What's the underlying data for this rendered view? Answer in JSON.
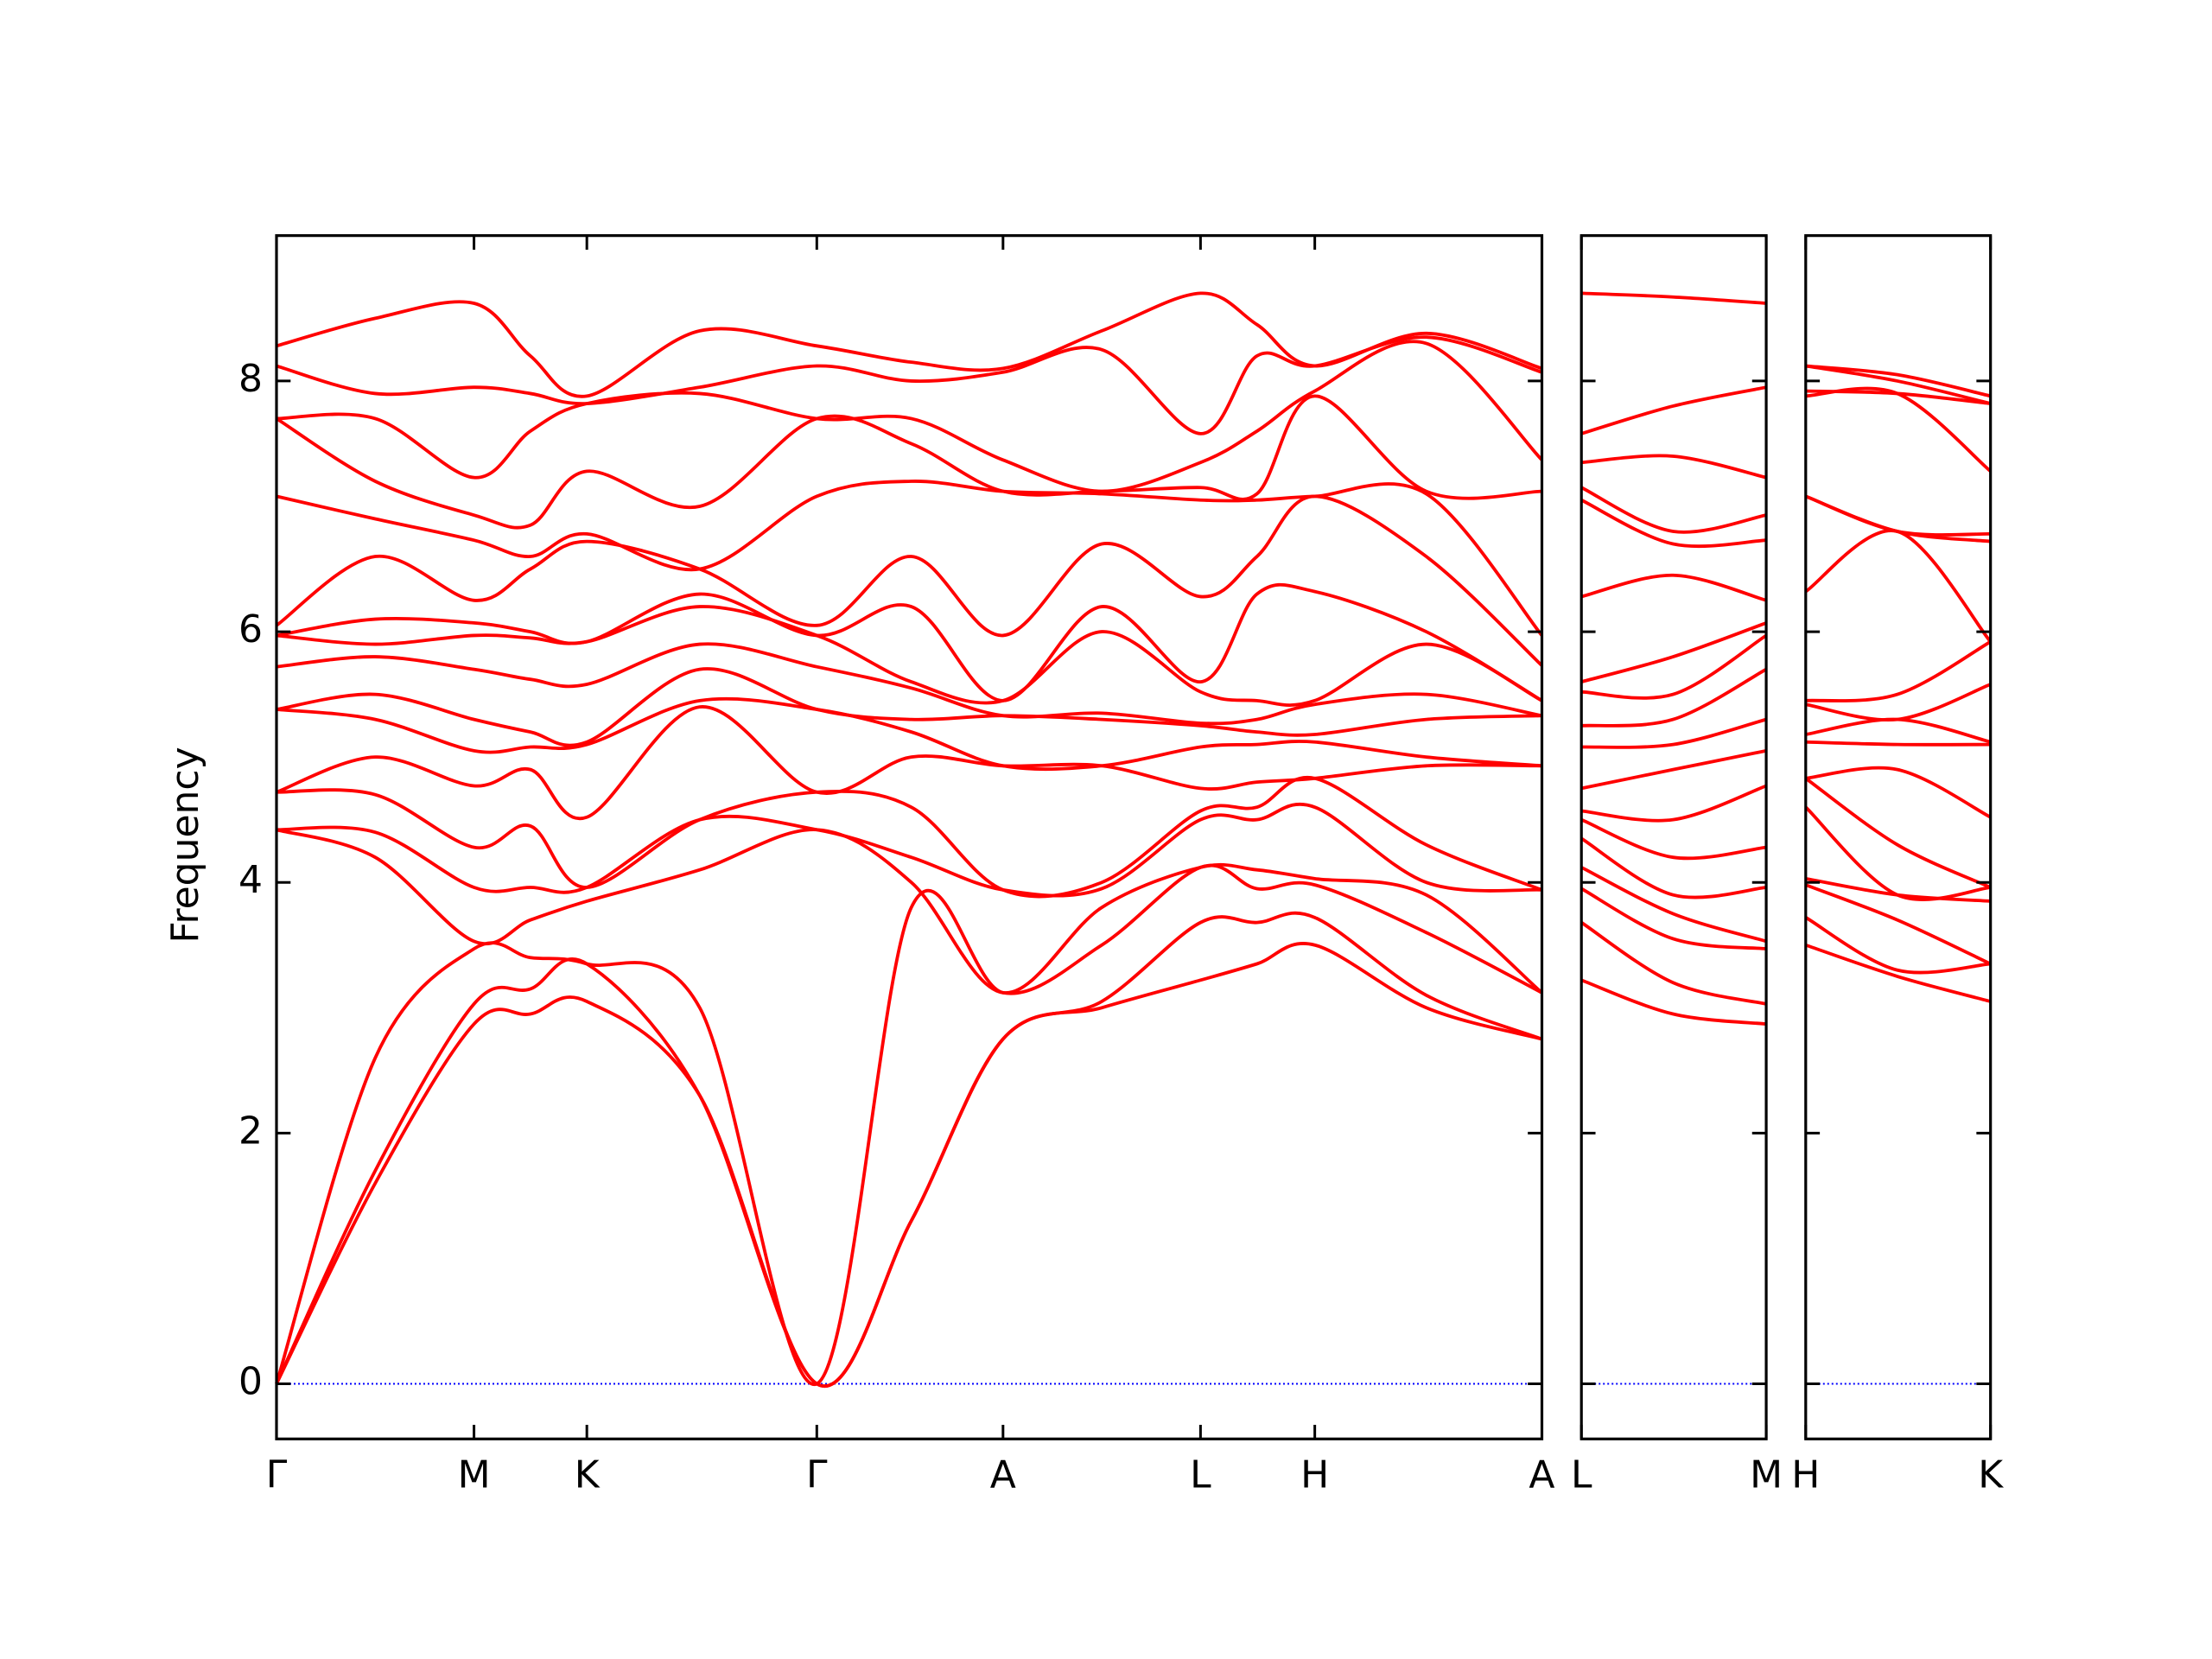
{
  "chart_data": [
    {
      "type": "line",
      "y_label": "Frequency",
      "line_color": "#ff0000",
      "zero_line": {
        "value": 0,
        "color": "#0000ff"
      },
      "xlim": [
        0,
        8.97
      ],
      "ylim": [
        -0.44,
        9.16
      ],
      "yticks": [
        0,
        2,
        4,
        6,
        8
      ],
      "ytick_labels": true,
      "xticks": [
        {
          "value": 0,
          "label": "Γ"
        },
        {
          "value": 1.4,
          "label": "M"
        },
        {
          "value": 2.2,
          "label": "K"
        },
        {
          "value": 3.83,
          "label": "Γ"
        },
        {
          "value": 5.15,
          "label": "A"
        },
        {
          "value": 6.55,
          "label": "L"
        },
        {
          "value": 7.36,
          "label": "H"
        },
        {
          "value": 8.97,
          "label": "A"
        }
      ],
      "x": [
        0,
        0.7,
        1.4,
        1.8,
        2.2,
        3.0,
        3.83,
        4.5,
        5.15,
        5.85,
        6.55,
        6.95,
        7.36,
        8.15,
        8.97
      ],
      "series": [
        {
          "values": [
            0,
            1.6,
            2.87,
            2.95,
            3.05,
            2.3,
            0,
            1.3,
            2.75,
            3.0,
            3.22,
            3.35,
            3.5,
            3.0,
            2.75
          ]
        },
        {
          "values": [
            0,
            1.7,
            3.03,
            3.15,
            3.35,
            2.3,
            0,
            1.3,
            2.75,
            3.05,
            3.68,
            3.68,
            3.72,
            3.1,
            2.75
          ]
        },
        {
          "values": [
            0,
            2.6,
            3.47,
            3.4,
            3.35,
            3.0,
            0,
            3.8,
            3.12,
            3.5,
            4.12,
            3.95,
            3.98,
            3.6,
            3.12
          ]
        },
        {
          "values": [
            4.42,
            4.2,
            3.53,
            3.7,
            3.85,
            4.1,
            4.42,
            4.0,
            3.12,
            3.8,
            4.12,
            4.1,
            4.03,
            3.9,
            3.12
          ]
        },
        {
          "values": [
            4.42,
            4.4,
            3.96,
            3.96,
            3.96,
            4.5,
            4.42,
            4.2,
            3.94,
            3.95,
            4.5,
            4.5,
            4.6,
            4.0,
            3.94
          ]
        },
        {
          "values": [
            4.72,
            4.7,
            4.28,
            4.45,
            3.96,
            4.5,
            4.72,
            4.6,
            3.94,
            4.0,
            4.57,
            4.6,
            4.83,
            4.3,
            3.94
          ]
        },
        {
          "values": [
            4.72,
            5.0,
            4.77,
            4.9,
            4.52,
            5.4,
            4.72,
            5.0,
            4.93,
            4.93,
            4.75,
            4.8,
            4.83,
            4.93,
            4.93
          ]
        },
        {
          "values": [
            5.38,
            5.3,
            5.05,
            5.08,
            5.1,
            5.45,
            5.38,
            5.2,
            4.93,
            4.93,
            5.08,
            5.1,
            5.12,
            5.0,
            4.93
          ]
        },
        {
          "values": [
            5.38,
            5.5,
            5.3,
            5.2,
            5.12,
            5.7,
            5.38,
            5.3,
            5.33,
            5.3,
            5.25,
            5.2,
            5.18,
            5.3,
            5.33
          ]
        },
        {
          "values": [
            5.72,
            5.8,
            5.7,
            5.62,
            5.58,
            5.9,
            5.72,
            5.55,
            5.33,
            5.35,
            5.27,
            5.3,
            5.42,
            5.5,
            5.33
          ]
        },
        {
          "values": [
            5.97,
            5.9,
            5.97,
            5.95,
            5.92,
            6.2,
            5.97,
            5.6,
            5.45,
            6.0,
            5.52,
            5.45,
            5.45,
            5.9,
            5.45
          ]
        },
        {
          "values": [
            5.97,
            6.1,
            6.07,
            6.0,
            5.92,
            6.3,
            5.97,
            6.2,
            5.45,
            6.2,
            5.6,
            6.3,
            6.32,
            6.0,
            5.45
          ]
        },
        {
          "values": [
            6.05,
            6.6,
            6.25,
            6.5,
            6.72,
            6.5,
            6.05,
            6.6,
            5.97,
            6.7,
            6.28,
            6.6,
            7.08,
            6.6,
            5.73
          ]
        },
        {
          "values": [
            7.08,
            6.9,
            6.73,
            6.6,
            6.78,
            6.5,
            7.08,
            7.2,
            7.12,
            7.1,
            7.05,
            7.05,
            7.08,
            7.1,
            5.97
          ]
        },
        {
          "values": [
            7.7,
            7.2,
            6.93,
            6.85,
            7.28,
            7.0,
            7.7,
            7.5,
            7.12,
            7.12,
            7.15,
            7.1,
            7.88,
            7.12,
            7.12
          ]
        },
        {
          "values": [
            7.7,
            7.7,
            7.23,
            7.6,
            7.82,
            7.9,
            7.7,
            7.7,
            7.37,
            7.12,
            7.35,
            7.6,
            7.92,
            8.3,
            7.37
          ]
        },
        {
          "values": [
            8.12,
            7.9,
            7.95,
            7.9,
            7.82,
            7.95,
            8.12,
            8.0,
            8.07,
            8.25,
            7.58,
            8.2,
            8.12,
            8.35,
            8.07
          ]
        },
        {
          "values": [
            8.28,
            8.5,
            8.62,
            8.2,
            7.88,
            8.4,
            8.28,
            8.15,
            8.1,
            8.4,
            8.7,
            8.45,
            8.12,
            8.38,
            8.1
          ]
        }
      ]
    },
    {
      "type": "line",
      "line_color": "#ff0000",
      "xlim": [
        8.97,
        10.28
      ],
      "ylim": [
        -0.44,
        9.16
      ],
      "yticks": [
        0,
        2,
        4,
        6,
        8
      ],
      "ytick_labels": false,
      "xticks": [
        {
          "value": 8.97,
          "label": "L"
        },
        {
          "value": 10.28,
          "label": "M"
        }
      ],
      "x": [
        8.97,
        9.62,
        10.28
      ],
      "series": [
        {
          "values": [
            3.22,
            2.95,
            2.87
          ]
        },
        {
          "values": [
            3.68,
            3.2,
            3.03
          ]
        },
        {
          "values": [
            3.95,
            3.55,
            3.47
          ]
        },
        {
          "values": [
            4.12,
            3.75,
            3.53
          ]
        },
        {
          "values": [
            4.35,
            3.9,
            3.96
          ]
        },
        {
          "values": [
            4.5,
            4.2,
            4.28
          ]
        },
        {
          "values": [
            4.57,
            4.5,
            4.77
          ]
        },
        {
          "values": [
            4.75,
            4.9,
            5.05
          ]
        },
        {
          "values": [
            5.08,
            5.1,
            5.3
          ]
        },
        {
          "values": [
            5.25,
            5.3,
            5.7
          ]
        },
        {
          "values": [
            5.52,
            5.5,
            5.97
          ]
        },
        {
          "values": [
            5.6,
            5.8,
            6.07
          ]
        },
        {
          "values": [
            6.28,
            6.45,
            6.25
          ]
        },
        {
          "values": [
            7.05,
            6.7,
            6.73
          ]
        },
        {
          "values": [
            7.15,
            6.8,
            6.93
          ]
        },
        {
          "values": [
            7.35,
            7.4,
            7.23
          ]
        },
        {
          "values": [
            7.58,
            7.8,
            7.95
          ]
        },
        {
          "values": [
            8.7,
            8.67,
            8.62
          ]
        }
      ]
    },
    {
      "type": "line",
      "line_color": "#ff0000",
      "xlim": [
        10.28,
        11.59
      ],
      "ylim": [
        -0.44,
        9.16
      ],
      "yticks": [
        0,
        2,
        4,
        6,
        8
      ],
      "ytick_labels": false,
      "xticks": [
        {
          "value": 10.28,
          "label": "H"
        },
        {
          "value": 11.59,
          "label": "K"
        }
      ],
      "x": [
        10.28,
        10.93,
        11.59
      ],
      "series": [
        {
          "values": [
            3.5,
            3.25,
            3.05
          ]
        },
        {
          "values": [
            3.72,
            3.3,
            3.35
          ]
        },
        {
          "values": [
            3.98,
            3.7,
            3.35
          ]
        },
        {
          "values": [
            4.03,
            3.9,
            3.85
          ]
        },
        {
          "values": [
            4.6,
            3.9,
            3.96
          ]
        },
        {
          "values": [
            4.83,
            4.3,
            3.96
          ]
        },
        {
          "values": [
            4.83,
            4.9,
            4.52
          ]
        },
        {
          "values": [
            5.12,
            5.1,
            5.1
          ]
        },
        {
          "values": [
            5.18,
            5.3,
            5.12
          ]
        },
        {
          "values": [
            5.42,
            5.3,
            5.58
          ]
        },
        {
          "values": [
            5.45,
            5.5,
            5.92
          ]
        },
        {
          "values": [
            6.32,
            6.8,
            5.92
          ]
        },
        {
          "values": [
            7.08,
            6.8,
            6.72
          ]
        },
        {
          "values": [
            7.08,
            6.8,
            6.78
          ]
        },
        {
          "values": [
            7.88,
            7.9,
            7.28
          ]
        },
        {
          "values": [
            7.92,
            7.9,
            7.82
          ]
        },
        {
          "values": [
            8.12,
            8.0,
            7.82
          ]
        },
        {
          "values": [
            8.12,
            8.05,
            7.88
          ]
        }
      ]
    }
  ]
}
